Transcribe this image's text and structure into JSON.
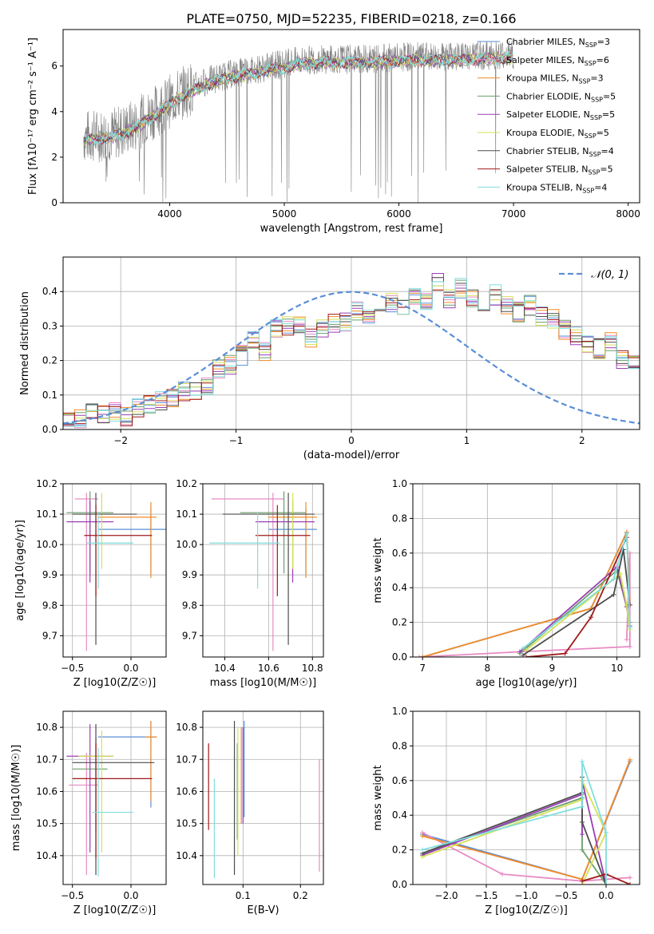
{
  "figure_title": "PLATE=0750, MJD=52235, FIBERID=0218, z=0.166",
  "palette": {
    "chabrier_miles": "#5b8ed6",
    "salpeter_miles": "#e78ac3",
    "kroupa_miles": "#f28c28",
    "chabrier_elodie": "#6b9e6b",
    "salpeter_elodie": "#9b3fb5",
    "kroupa_elodie": "#d4e157",
    "chabrier_stelib": "#4d4d4d",
    "salpeter_stelib": "#a01818",
    "kroupa_stelib": "#80dede",
    "gaussian": "#5b8ed6",
    "data": "#808080",
    "grid": "#b0b0b0"
  },
  "chart_data": [
    {
      "id": "spectrum",
      "type": "line",
      "xlabel": "wavelength [Angstrom, rest frame]",
      "ylabel": "Flux [fλ10⁻¹⁷ erg cm⁻² s⁻¹ A⁻¹]",
      "xlim": [
        3070,
        8100
      ],
      "ylim": [
        0,
        7.6
      ],
      "xticks": [
        4000,
        5000,
        6000,
        7000,
        8000
      ],
      "yticks": [
        0,
        2,
        4,
        6
      ],
      "grid": false,
      "legend": "top-right",
      "legend_entries": [
        "Chabrier MILES, N_SSP=3",
        "Salpeter MILES, N_SSP=6",
        "Kroupa MILES, N_SSP=3",
        "Chabrier ELODIE, N_SSP=5",
        "Salpeter ELODIE, N_SSP=5",
        "Kroupa ELODIE, N_SSP=5",
        "Chabrier STELIB, N_SSP=4",
        "Salpeter STELIB, N_SSP=5",
        "Kroupa STELIB, N_SSP=4"
      ],
      "continuum": {
        "x": [
          3250,
          3500,
          3700,
          3900,
          4100,
          4300,
          4500,
          4700,
          4900,
          5100,
          5300,
          5500,
          5700,
          5900,
          6100,
          6300,
          6500,
          6700,
          6900,
          7000
        ],
        "y": [
          2.9,
          3.0,
          3.4,
          4.1,
          4.8,
          5.3,
          5.6,
          5.8,
          6.0,
          6.2,
          6.3,
          6.3,
          6.3,
          6.35,
          6.4,
          6.4,
          6.4,
          6.45,
          6.5,
          6.5
        ]
      }
    },
    {
      "id": "residuals",
      "type": "histogram",
      "xlabel": "(data-model)/error",
      "ylabel": "Normed distribution",
      "xlim": [
        -2.5,
        2.5
      ],
      "ylim": [
        0,
        0.5
      ],
      "xticks": [
        -2,
        -1,
        0,
        1,
        2
      ],
      "yticks": [
        0.0,
        0.1,
        0.2,
        0.3,
        0.4
      ],
      "grid": true,
      "legend": "top-right",
      "legend_entries": [
        "N(0,1)"
      ],
      "bin_width": 0.1,
      "bin_start": -2.5,
      "values": [
        0.02,
        0.03,
        0.045,
        0.04,
        0.05,
        0.04,
        0.06,
        0.075,
        0.085,
        0.095,
        0.11,
        0.11,
        0.13,
        0.175,
        0.185,
        0.215,
        0.255,
        0.23,
        0.29,
        0.3,
        0.305,
        0.265,
        0.29,
        0.305,
        0.31,
        0.345,
        0.32,
        0.33,
        0.365,
        0.36,
        0.39,
        0.365,
        0.43,
        0.38,
        0.41,
        0.375,
        0.355,
        0.39,
        0.365,
        0.34,
        0.36,
        0.33,
        0.32,
        0.29,
        0.275,
        0.245,
        0.235,
        0.255,
        0.205,
        0.195,
        0.235,
        0.215,
        0.19,
        0.15,
        0.155,
        0.14,
        0.125,
        0.09,
        0.08,
        0.065,
        0.05,
        0.045,
        0.04,
        0.03,
        0.025
      ]
    },
    {
      "id": "age_vs_Z",
      "type": "scatter",
      "xlabel": "Z [log10(Z/Z☉)]",
      "ylabel": "age  [log10(age/yr)]",
      "xlim": [
        -0.58,
        0.3
      ],
      "ylim": [
        9.63,
        10.2
      ],
      "xticks": [
        -0.5,
        0.0
      ],
      "yticks": [
        9.7,
        9.8,
        9.9,
        10.0,
        10.1,
        10.2
      ],
      "grid": true,
      "points": [
        {
          "x": 0.17,
          "y": 10.05,
          "xerr": [
            0.45,
            0.2
          ],
          "yerr": [
            0.15,
            0.07
          ]
        },
        {
          "x": -0.38,
          "y": 10.15,
          "xerr": [
            0.1,
            0.1
          ],
          "yerr": [
            0.5,
            0.02
          ]
        },
        {
          "x": 0.17,
          "y": 10.09,
          "xerr": [
            0.45,
            0.05
          ],
          "yerr": [
            0.2,
            0.05
          ]
        },
        {
          "x": -0.35,
          "y": 10.105,
          "xerr": [
            0.2,
            0.2
          ],
          "yerr": [
            0.2,
            0.07
          ]
        },
        {
          "x": -0.35,
          "y": 10.075,
          "xerr": [
            0.2,
            0.2
          ],
          "yerr": [
            0.2,
            0.07
          ]
        },
        {
          "x": -0.25,
          "y": 10.1,
          "xerr": [
            0.2,
            0.1
          ],
          "yerr": [
            0.18,
            0.07
          ]
        },
        {
          "x": -0.3,
          "y": 10.1,
          "xerr": [
            0.2,
            0.35
          ],
          "yerr": [
            0.43,
            0.07
          ]
        },
        {
          "x": -0.3,
          "y": 10.03,
          "xerr": [
            0.1,
            0.48
          ],
          "yerr": [
            0.2,
            0.1
          ]
        },
        {
          "x": -0.28,
          "y": 10.005,
          "xerr": [
            0.1,
            0.3
          ],
          "yerr": [
            0.15,
            0.1
          ]
        }
      ]
    },
    {
      "id": "age_vs_mass",
      "type": "scatter",
      "xlabel": "mass [log10(M/M☉)]",
      "ylabel": "",
      "xlim": [
        10.3,
        10.85
      ],
      "ylim": [
        9.63,
        10.2
      ],
      "xticks": [
        10.4,
        10.6,
        10.8
      ],
      "yticks": [
        9.7,
        9.8,
        9.9,
        10.0,
        10.1,
        10.2
      ],
      "grid": true,
      "points": [
        {
          "x": 10.77,
          "y": 10.05,
          "xerr": [
            0.17,
            0.05
          ],
          "yerr": [
            0.15,
            0.07
          ]
        },
        {
          "x": 10.62,
          "y": 10.15,
          "xerr": [
            0.28,
            0.05
          ],
          "yerr": [
            0.5,
            0.02
          ]
        },
        {
          "x": 10.77,
          "y": 10.09,
          "xerr": [
            0.17,
            0.05
          ],
          "yerr": [
            0.2,
            0.05
          ]
        },
        {
          "x": 10.67,
          "y": 10.105,
          "xerr": [
            0.2,
            0.1
          ],
          "yerr": [
            0.2,
            0.07
          ]
        },
        {
          "x": 10.71,
          "y": 10.075,
          "xerr": [
            0.17,
            0.1
          ],
          "yerr": [
            0.2,
            0.07
          ]
        },
        {
          "x": 10.71,
          "y": 10.1,
          "xerr": [
            0.17,
            0.08
          ],
          "yerr": [
            0.18,
            0.07
          ]
        },
        {
          "x": 10.69,
          "y": 10.1,
          "xerr": [
            0.3,
            0.12
          ],
          "yerr": [
            0.43,
            0.07
          ]
        },
        {
          "x": 10.64,
          "y": 10.03,
          "xerr": [
            0.1,
            0.15
          ],
          "yerr": [
            0.2,
            0.1
          ]
        },
        {
          "x": 10.55,
          "y": 10.005,
          "xerr": [
            0.22,
            0.1
          ],
          "yerr": [
            0.15,
            0.1
          ]
        }
      ]
    },
    {
      "id": "weight_vs_age",
      "type": "line",
      "xlabel": "age  [log10(age/yr)]",
      "ylabel": "mass weight",
      "xlim": [
        6.85,
        10.35
      ],
      "ylim": [
        0,
        1.0
      ],
      "xticks": [
        7,
        8,
        9,
        10
      ],
      "yticks": [
        0.0,
        0.2,
        0.4,
        0.6,
        0.8,
        1.0
      ],
      "grid": true,
      "series": [
        {
          "x": [
            7.0,
            9.6,
            10.15,
            10.2
          ],
          "y": [
            0.0,
            0.28,
            0.72,
            0.3
          ]
        },
        {
          "x": [
            6.95,
            8.5,
            10.2,
            10.2,
            10.15
          ],
          "y": [
            0.0,
            0.03,
            0.06,
            0.6,
            0.1
          ]
        },
        {
          "x": [
            7.0,
            9.6,
            10.15,
            10.2
          ],
          "y": [
            0.0,
            0.28,
            0.72,
            0.3
          ]
        },
        {
          "x": [
            8.5,
            10.0,
            10.15,
            10.2
          ],
          "y": [
            0.02,
            0.5,
            0.29,
            0.2
          ]
        },
        {
          "x": [
            8.5,
            10.0,
            10.15,
            10.2
          ],
          "y": [
            0.03,
            0.52,
            0.29,
            0.18
          ]
        },
        {
          "x": [
            8.6,
            10.05,
            10.15,
            10.2
          ],
          "y": [
            0.04,
            0.48,
            0.3,
            0.16
          ]
        },
        {
          "x": [
            8.55,
            9.95,
            10.1,
            10.2
          ],
          "y": [
            0.01,
            0.36,
            0.62,
            0.3
          ]
        },
        {
          "x": [
            8.6,
            9.2,
            9.6,
            10.15
          ],
          "y": [
            0.0,
            0.02,
            0.23,
            0.69
          ]
        },
        {
          "x": [
            8.55,
            9.95,
            10.15,
            10.2
          ],
          "y": [
            0.05,
            0.45,
            0.71,
            0.17
          ]
        }
      ]
    },
    {
      "id": "mass_vs_Z",
      "type": "scatter",
      "xlabel": "Z [log10(Z/Z☉)]",
      "ylabel": "mass [log10(M/M☉)]",
      "xlim": [
        -0.58,
        0.3
      ],
      "ylim": [
        10.31,
        10.85
      ],
      "xticks": [
        -0.5,
        0.0
      ],
      "yticks": [
        10.4,
        10.5,
        10.6,
        10.7,
        10.8
      ],
      "grid": true,
      "points": [
        {
          "x": 0.17,
          "y": 10.77,
          "xerr": [
            0.45,
            0.05
          ],
          "yerr": [
            0.22,
            0.05
          ]
        },
        {
          "x": -0.38,
          "y": 10.62,
          "xerr": [
            0.15,
            0.1
          ],
          "yerr": [
            0.28,
            0.1
          ]
        },
        {
          "x": 0.17,
          "y": 10.77,
          "xerr": [
            0.05,
            0.05
          ],
          "yerr": [
            0.2,
            0.05
          ]
        },
        {
          "x": -0.3,
          "y": 10.67,
          "xerr": [
            0.2,
            0.1
          ],
          "yerr": [
            0.2,
            0.1
          ]
        },
        {
          "x": -0.35,
          "y": 10.71,
          "xerr": [
            0.2,
            0.2
          ],
          "yerr": [
            0.3,
            0.1
          ]
        },
        {
          "x": -0.25,
          "y": 10.71,
          "xerr": [
            0.2,
            0.1
          ],
          "yerr": [
            0.3,
            0.08
          ]
        },
        {
          "x": -0.3,
          "y": 10.69,
          "xerr": [
            0.2,
            0.5
          ],
          "yerr": [
            0.35,
            0.12
          ]
        },
        {
          "x": -0.3,
          "y": 10.64,
          "xerr": [
            0.2,
            0.48
          ],
          "yerr": [
            0.25,
            0.11
          ]
        },
        {
          "x": -0.28,
          "y": 10.535,
          "xerr": [
            0.05,
            0.3
          ],
          "yerr": [
            0.2,
            0.2
          ]
        }
      ]
    },
    {
      "id": "mass_vs_ebv",
      "type": "scatter",
      "xlabel": "E(B-V)",
      "ylabel": "",
      "xlim": [
        0.03,
        0.24
      ],
      "ylim": [
        10.31,
        10.85
      ],
      "xticks": [
        0.1,
        0.2
      ],
      "yticks": [
        10.4,
        10.5,
        10.6,
        10.7,
        10.8
      ],
      "grid": true,
      "points": [
        {
          "x": 0.102,
          "y": 10.62,
          "yerr": [
            0.1,
            0.2
          ]
        },
        {
          "x": 0.233,
          "y": 10.55,
          "yerr": [
            0.2,
            0.15
          ]
        },
        {
          "x": 0.097,
          "y": 10.65,
          "yerr": [
            0.15,
            0.15
          ]
        },
        {
          "x": 0.09,
          "y": 10.6,
          "yerr": [
            0.15,
            0.15
          ]
        },
        {
          "x": 0.1,
          "y": 10.67,
          "yerr": [
            0.17,
            0.13
          ]
        },
        {
          "x": 0.091,
          "y": 10.6,
          "yerr": [
            0.2,
            0.2
          ]
        },
        {
          "x": 0.085,
          "y": 10.58,
          "yerr": [
            0.24,
            0.24
          ]
        },
        {
          "x": 0.04,
          "y": 10.61,
          "yerr": [
            0.13,
            0.14
          ]
        },
        {
          "x": 0.05,
          "y": 10.49,
          "yerr": [
            0.16,
            0.15
          ]
        }
      ]
    },
    {
      "id": "weight_vs_Z",
      "type": "line",
      "xlabel": "Z [log10(Z/Z☉)]",
      "ylabel": "mass weight",
      "xlim": [
        -2.42,
        0.42
      ],
      "ylim": [
        0,
        1.0
      ],
      "xticks": [
        -2.0,
        -1.5,
        -1.0,
        -0.5,
        0.0
      ],
      "yticks": [
        0.0,
        0.2,
        0.4,
        0.6,
        0.8,
        1.0
      ],
      "grid": true,
      "series": [
        {
          "x": [
            -2.3,
            -0.3,
            0.3
          ],
          "y": [
            0.29,
            0.03,
            0.71
          ]
        },
        {
          "x": [
            -2.3,
            -1.3,
            -0.3,
            0.3
          ],
          "y": [
            0.3,
            0.06,
            0.02,
            0.04
          ]
        },
        {
          "x": [
            -2.3,
            -0.3,
            0.3
          ],
          "y": [
            0.28,
            0.03,
            0.72
          ]
        },
        {
          "x": [
            -2.3,
            -0.3,
            -0.3,
            -0.3,
            0.0
          ],
          "y": [
            0.18,
            0.5,
            0.6,
            0.2,
            0.0
          ]
        },
        {
          "x": [
            -2.3,
            -0.3,
            -0.3,
            -0.3,
            0.0
          ],
          "y": [
            0.17,
            0.52,
            0.29,
            0.6,
            0.0
          ]
        },
        {
          "x": [
            -2.3,
            -0.3,
            -0.3,
            0.0,
            -0.3
          ],
          "y": [
            0.16,
            0.49,
            0.6,
            0.3,
            0.0
          ]
        },
        {
          "x": [
            -2.3,
            -0.3,
            -0.3,
            -0.3,
            0.0
          ],
          "y": [
            0.18,
            0.53,
            0.62,
            0.36,
            0.0
          ]
        },
        {
          "x": [
            -0.3,
            0.0,
            0.3
          ],
          "y": [
            0.02,
            0.06,
            0.0
          ]
        },
        {
          "x": [
            -2.3,
            -0.3,
            -0.3,
            0.0,
            0.0
          ],
          "y": [
            0.2,
            0.45,
            0.71,
            0.3,
            0.0
          ]
        }
      ]
    }
  ]
}
